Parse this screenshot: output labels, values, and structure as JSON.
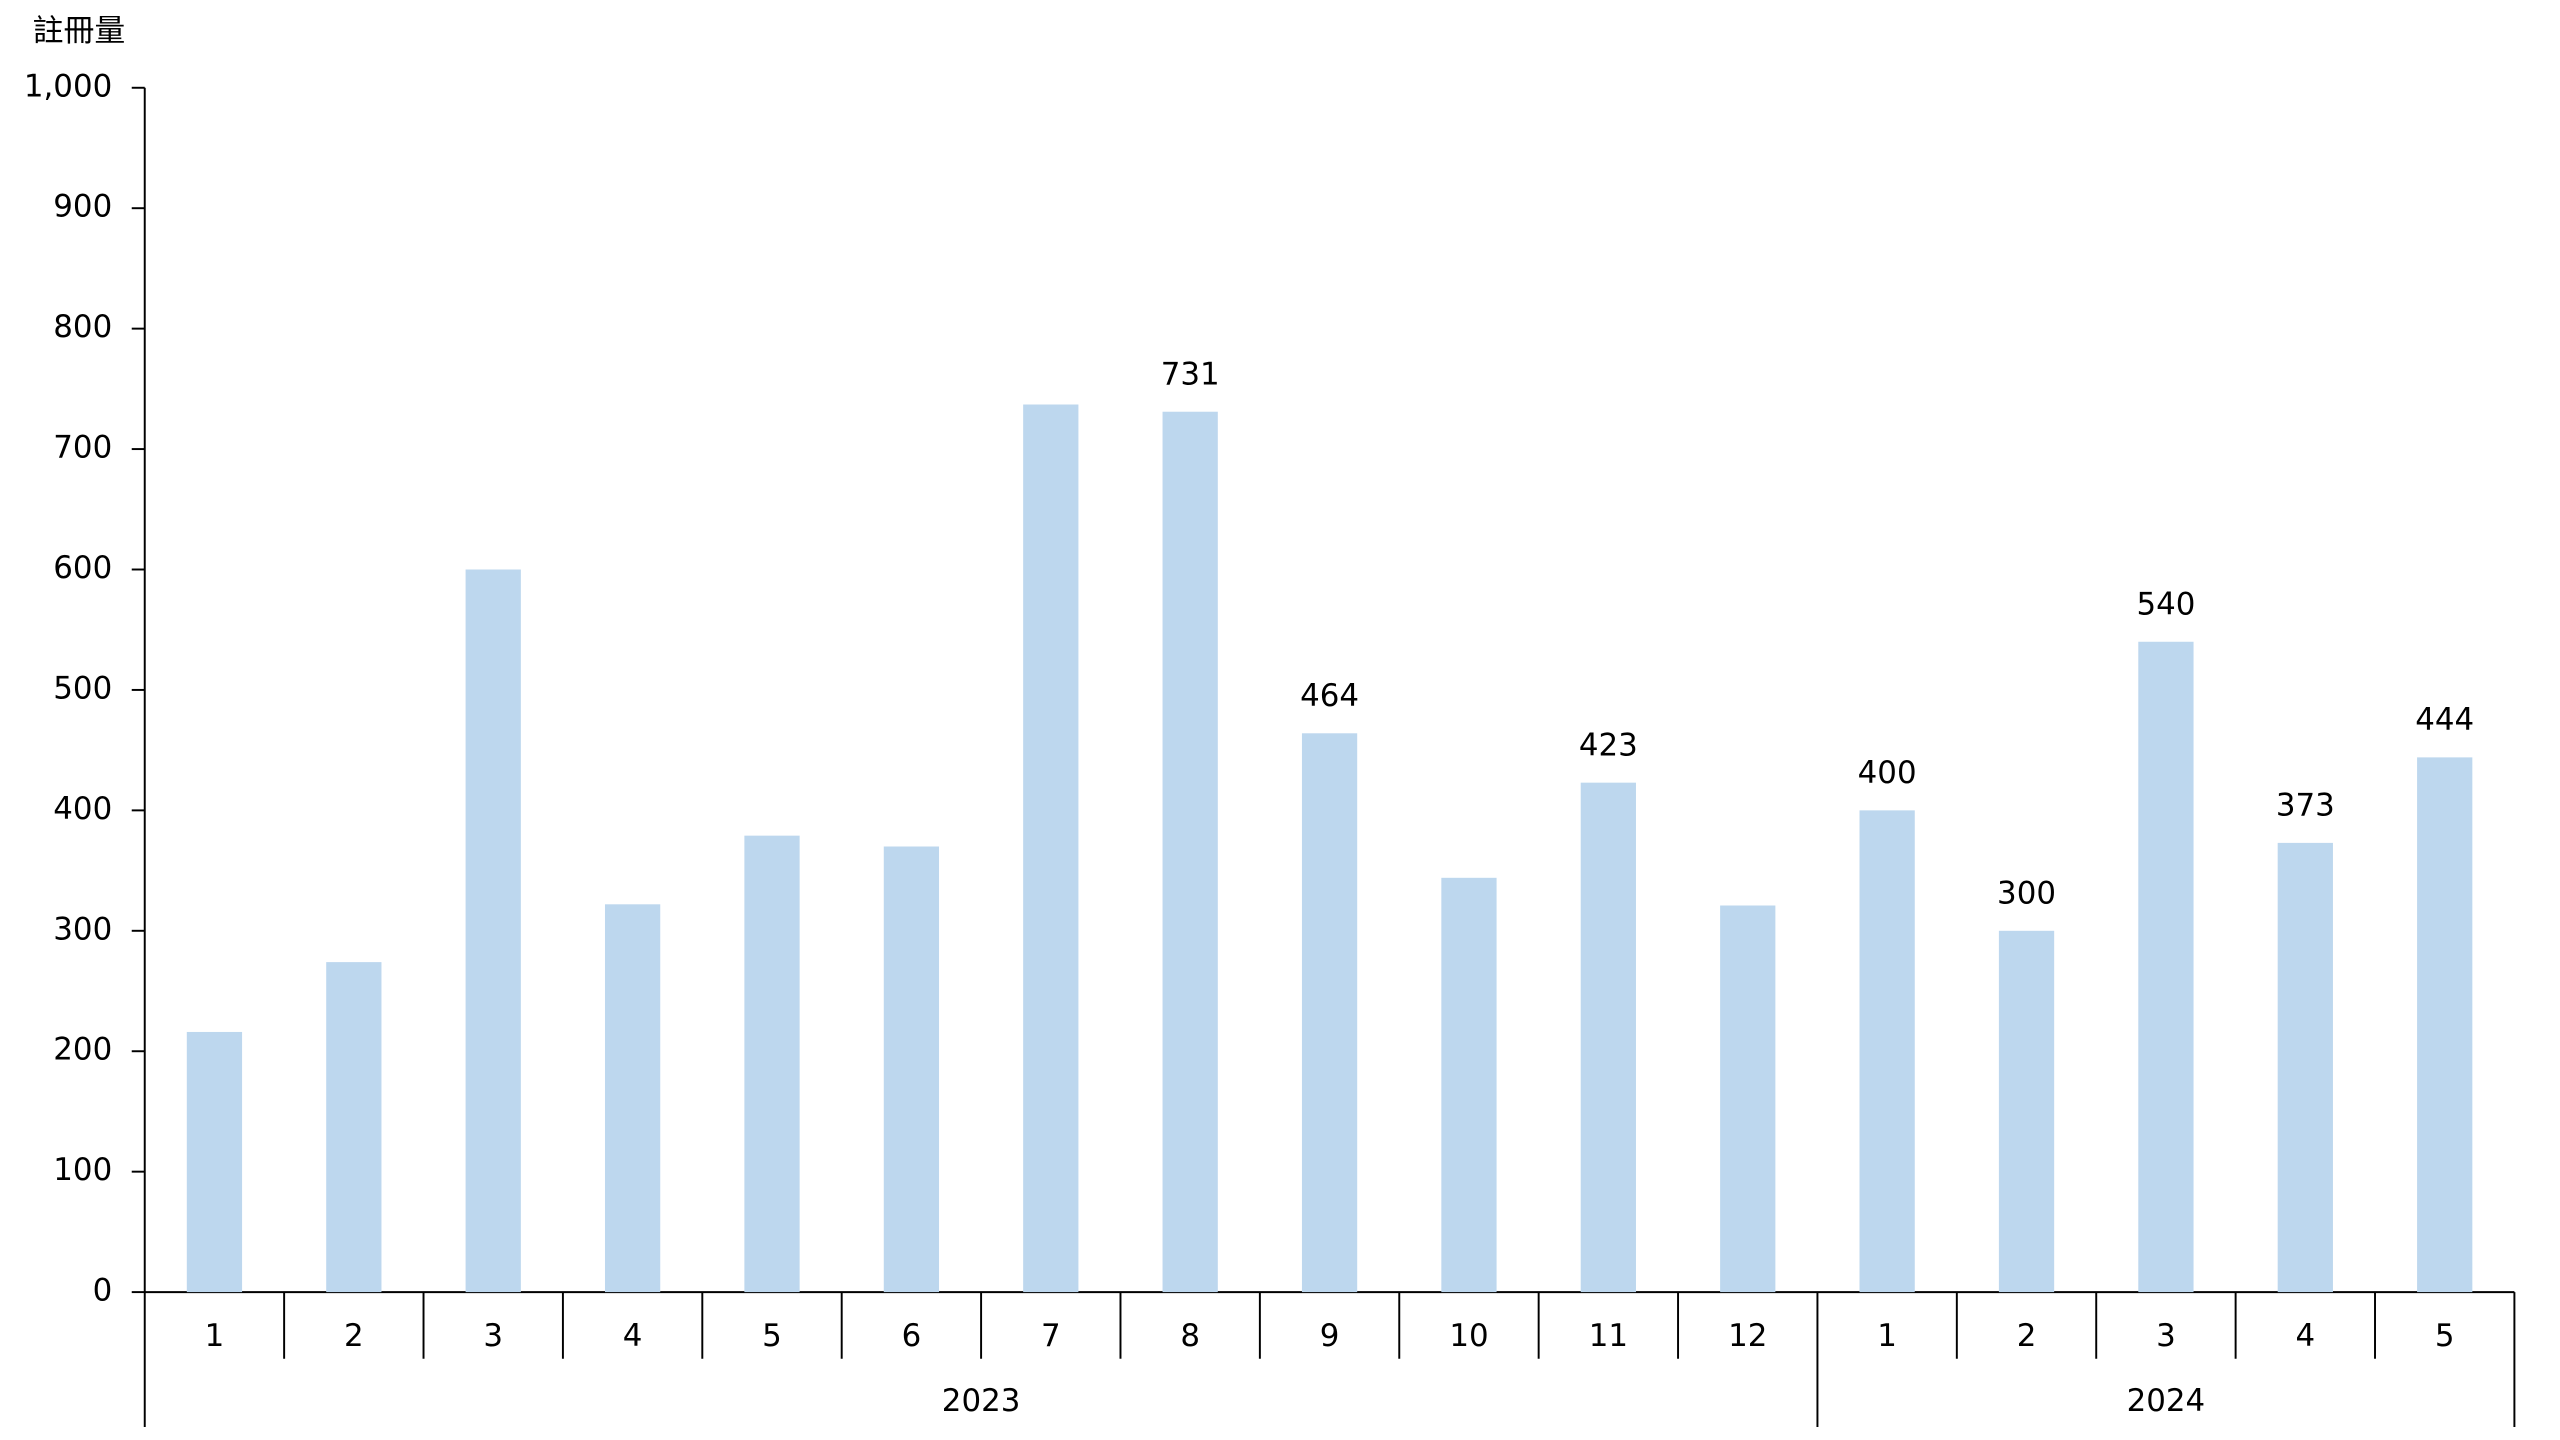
{
  "chart_data": {
    "type": "bar",
    "y_label": "註冊量",
    "color": "#bdd7ee",
    "ylim": [
      0,
      1000
    ],
    "yticks": [
      0,
      100,
      200,
      300,
      400,
      500,
      600,
      700,
      800,
      900,
      {
        "value": 1000,
        "label": "1,000"
      }
    ],
    "groups": [
      {
        "label": "2023",
        "categories": [
          "1",
          "2",
          "3",
          "4",
          "5",
          "6",
          "7",
          "8",
          "9",
          "10",
          "11",
          "12"
        ],
        "values": [
          216,
          274,
          600,
          322,
          379,
          370,
          737,
          731,
          464,
          344,
          423,
          321
        ],
        "value_labels": [
          null,
          null,
          null,
          null,
          null,
          null,
          null,
          "731",
          "464",
          null,
          "423",
          null
        ]
      },
      {
        "label": "2024",
        "categories": [
          "1",
          "2",
          "3",
          "4",
          "5"
        ],
        "values": [
          400,
          300,
          540,
          373,
          444
        ],
        "value_labels": [
          "400",
          "300",
          "540",
          "373",
          "444"
        ]
      }
    ]
  }
}
